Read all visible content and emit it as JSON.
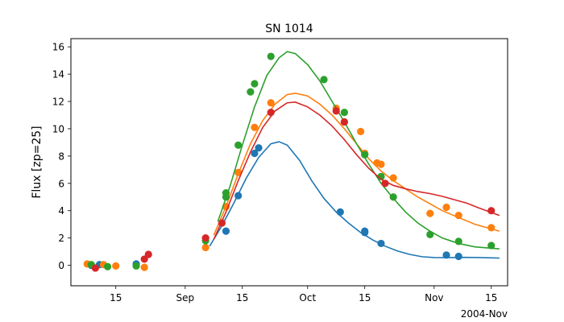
{
  "chart_data": {
    "type": "scatter",
    "title": "SN 1014",
    "xlabel": "",
    "ylabel": "Flux [zp=25]",
    "x_offset_label": "2004-Nov",
    "x_axis": "date",
    "xlim": [
      "2004-08-04",
      "2004-11-19"
    ],
    "ylim": [
      -1.5,
      16.6
    ],
    "grid": false,
    "x_ticks": [
      {
        "date": "2004-08-15",
        "label": "15"
      },
      {
        "date": "2004-09-01",
        "label": "Sep"
      },
      {
        "date": "2004-09-15",
        "label": "15"
      },
      {
        "date": "2004-10-01",
        "label": "Oct"
      },
      {
        "date": "2004-10-15",
        "label": "15"
      },
      {
        "date": "2004-11-01",
        "label": "Nov"
      },
      {
        "date": "2004-11-15",
        "label": "15"
      }
    ],
    "y_ticks": [
      0,
      2,
      4,
      6,
      8,
      10,
      12,
      14,
      16
    ],
    "series": [
      {
        "color": "#1f77b4",
        "points": [
          [
            "2004-08-09",
            0.0
          ],
          [
            "2004-08-11",
            0.05
          ],
          [
            "2004-08-20",
            0.1
          ],
          [
            "2004-09-11",
            2.5
          ],
          [
            "2004-09-14",
            5.1
          ],
          [
            "2004-09-18",
            8.2
          ],
          [
            "2004-09-19",
            8.6
          ],
          [
            "2004-10-09",
            3.9
          ],
          [
            "2004-10-15",
            2.5
          ],
          [
            "2004-10-15",
            2.4
          ],
          [
            "2004-10-19",
            1.6
          ],
          [
            "2004-11-04",
            0.75
          ],
          [
            "2004-11-07",
            0.65
          ]
        ],
        "curve": [
          [
            "2004-09-07",
            1.4
          ],
          [
            "2004-09-10",
            2.9
          ],
          [
            "2004-09-13",
            4.6
          ],
          [
            "2004-09-16",
            6.4
          ],
          [
            "2004-09-19",
            7.9
          ],
          [
            "2004-09-22",
            8.9
          ],
          [
            "2004-09-24",
            9.05
          ],
          [
            "2004-09-26",
            8.8
          ],
          [
            "2004-09-29",
            7.7
          ],
          [
            "2004-10-02",
            6.2
          ],
          [
            "2004-10-05",
            4.9
          ],
          [
            "2004-10-08",
            3.9
          ],
          [
            "2004-10-11",
            3.1
          ],
          [
            "2004-10-14",
            2.4
          ],
          [
            "2004-10-17",
            1.85
          ],
          [
            "2004-10-20",
            1.4
          ],
          [
            "2004-10-23",
            1.05
          ],
          [
            "2004-10-26",
            0.8
          ],
          [
            "2004-10-29",
            0.63
          ],
          [
            "2004-11-01",
            0.57
          ],
          [
            "2004-11-04",
            0.56
          ],
          [
            "2004-11-08",
            0.58
          ],
          [
            "2004-11-12",
            0.57
          ],
          [
            "2004-11-17",
            0.53
          ]
        ]
      },
      {
        "color": "#ff7f0e",
        "points": [
          [
            "2004-08-08",
            0.1
          ],
          [
            "2004-08-12",
            0.05
          ],
          [
            "2004-08-15",
            -0.05
          ],
          [
            "2004-08-22",
            -0.15
          ],
          [
            "2004-09-06",
            1.3
          ],
          [
            "2004-09-11",
            4.3
          ],
          [
            "2004-09-14",
            6.8
          ],
          [
            "2004-09-18",
            10.1
          ],
          [
            "2004-09-22",
            11.9
          ],
          [
            "2004-10-08",
            11.5
          ],
          [
            "2004-10-10",
            10.5
          ],
          [
            "2004-10-14",
            9.8
          ],
          [
            "2004-10-15",
            8.2
          ],
          [
            "2004-10-18",
            7.5
          ],
          [
            "2004-10-19",
            7.4
          ],
          [
            "2004-10-22",
            6.4
          ],
          [
            "2004-10-31",
            3.8
          ],
          [
            "2004-11-04",
            4.25
          ],
          [
            "2004-11-07",
            3.65
          ],
          [
            "2004-11-15",
            2.75
          ]
        ],
        "curve": [
          [
            "2004-09-08",
            2.2
          ],
          [
            "2004-09-11",
            4.3
          ],
          [
            "2004-09-14",
            6.7
          ],
          [
            "2004-09-17",
            8.9
          ],
          [
            "2004-09-20",
            10.6
          ],
          [
            "2004-09-23",
            11.8
          ],
          [
            "2004-09-26",
            12.5
          ],
          [
            "2004-09-28",
            12.6
          ],
          [
            "2004-10-01",
            12.4
          ],
          [
            "2004-10-04",
            11.8
          ],
          [
            "2004-10-07",
            11.0
          ],
          [
            "2004-10-10",
            10.0
          ],
          [
            "2004-10-13",
            8.9
          ],
          [
            "2004-10-16",
            7.8
          ],
          [
            "2004-10-19",
            6.9
          ],
          [
            "2004-10-22",
            6.2
          ],
          [
            "2004-10-25",
            5.6
          ],
          [
            "2004-10-28",
            5.0
          ],
          [
            "2004-10-31",
            4.5
          ],
          [
            "2004-11-03",
            4.0
          ],
          [
            "2004-11-07",
            3.5
          ],
          [
            "2004-11-11",
            3.0
          ],
          [
            "2004-11-17",
            2.5
          ]
        ]
      },
      {
        "color": "#2ca02c",
        "points": [
          [
            "2004-08-09",
            0.05
          ],
          [
            "2004-08-13",
            -0.1
          ],
          [
            "2004-08-20",
            -0.05
          ],
          [
            "2004-09-06",
            1.8
          ],
          [
            "2004-09-11",
            5.0
          ],
          [
            "2004-09-11",
            5.3
          ],
          [
            "2004-09-14",
            8.8
          ],
          [
            "2004-09-17",
            12.7
          ],
          [
            "2004-09-18",
            13.3
          ],
          [
            "2004-09-22",
            15.3
          ],
          [
            "2004-10-05",
            13.6
          ],
          [
            "2004-10-10",
            11.2
          ],
          [
            "2004-10-15",
            8.1
          ],
          [
            "2004-10-19",
            6.5
          ],
          [
            "2004-10-22",
            5.0
          ],
          [
            "2004-10-31",
            2.25
          ],
          [
            "2004-11-07",
            1.75
          ],
          [
            "2004-11-15",
            1.45
          ]
        ],
        "curve": [
          [
            "2004-09-09",
            3.2
          ],
          [
            "2004-09-12",
            5.8
          ],
          [
            "2004-09-15",
            8.8
          ],
          [
            "2004-09-18",
            11.6
          ],
          [
            "2004-09-21",
            13.9
          ],
          [
            "2004-09-24",
            15.2
          ],
          [
            "2004-09-26",
            15.65
          ],
          [
            "2004-09-28",
            15.5
          ],
          [
            "2004-10-01",
            14.7
          ],
          [
            "2004-10-04",
            13.5
          ],
          [
            "2004-10-07",
            12.0
          ],
          [
            "2004-10-10",
            10.5
          ],
          [
            "2004-10-13",
            8.9
          ],
          [
            "2004-10-16",
            7.4
          ],
          [
            "2004-10-19",
            6.0
          ],
          [
            "2004-10-22",
            4.9
          ],
          [
            "2004-10-25",
            3.9
          ],
          [
            "2004-10-28",
            3.1
          ],
          [
            "2004-10-31",
            2.5
          ],
          [
            "2004-11-03",
            2.0
          ],
          [
            "2004-11-07",
            1.6
          ],
          [
            "2004-11-11",
            1.35
          ],
          [
            "2004-11-17",
            1.2
          ]
        ]
      },
      {
        "color": "#d62728",
        "points": [
          [
            "2004-08-10",
            -0.2
          ],
          [
            "2004-08-22",
            0.45
          ],
          [
            "2004-08-23",
            0.8
          ],
          [
            "2004-09-06",
            2.0
          ],
          [
            "2004-09-10",
            3.1
          ],
          [
            "2004-09-22",
            11.2
          ],
          [
            "2004-10-08",
            11.3
          ],
          [
            "2004-10-10",
            10.5
          ],
          [
            "2004-10-20",
            6.0
          ],
          [
            "2004-11-15",
            4.0
          ]
        ],
        "curve": [
          [
            "2004-09-08",
            1.9
          ],
          [
            "2004-09-11",
            3.9
          ],
          [
            "2004-09-14",
            6.2
          ],
          [
            "2004-09-17",
            8.3
          ],
          [
            "2004-09-20",
            10.1
          ],
          [
            "2004-09-23",
            11.3
          ],
          [
            "2004-09-26",
            11.9
          ],
          [
            "2004-09-28",
            11.95
          ],
          [
            "2004-10-01",
            11.6
          ],
          [
            "2004-10-04",
            11.0
          ],
          [
            "2004-10-07",
            10.2
          ],
          [
            "2004-10-10",
            9.2
          ],
          [
            "2004-10-13",
            8.1
          ],
          [
            "2004-10-16",
            7.1
          ],
          [
            "2004-10-19",
            6.3
          ],
          [
            "2004-10-22",
            5.85
          ],
          [
            "2004-10-25",
            5.6
          ],
          [
            "2004-10-28",
            5.4
          ],
          [
            "2004-10-31",
            5.25
          ],
          [
            "2004-11-03",
            5.05
          ],
          [
            "2004-11-06",
            4.8
          ],
          [
            "2004-11-09",
            4.55
          ],
          [
            "2004-11-12",
            4.2
          ],
          [
            "2004-11-17",
            3.65
          ]
        ]
      }
    ]
  }
}
